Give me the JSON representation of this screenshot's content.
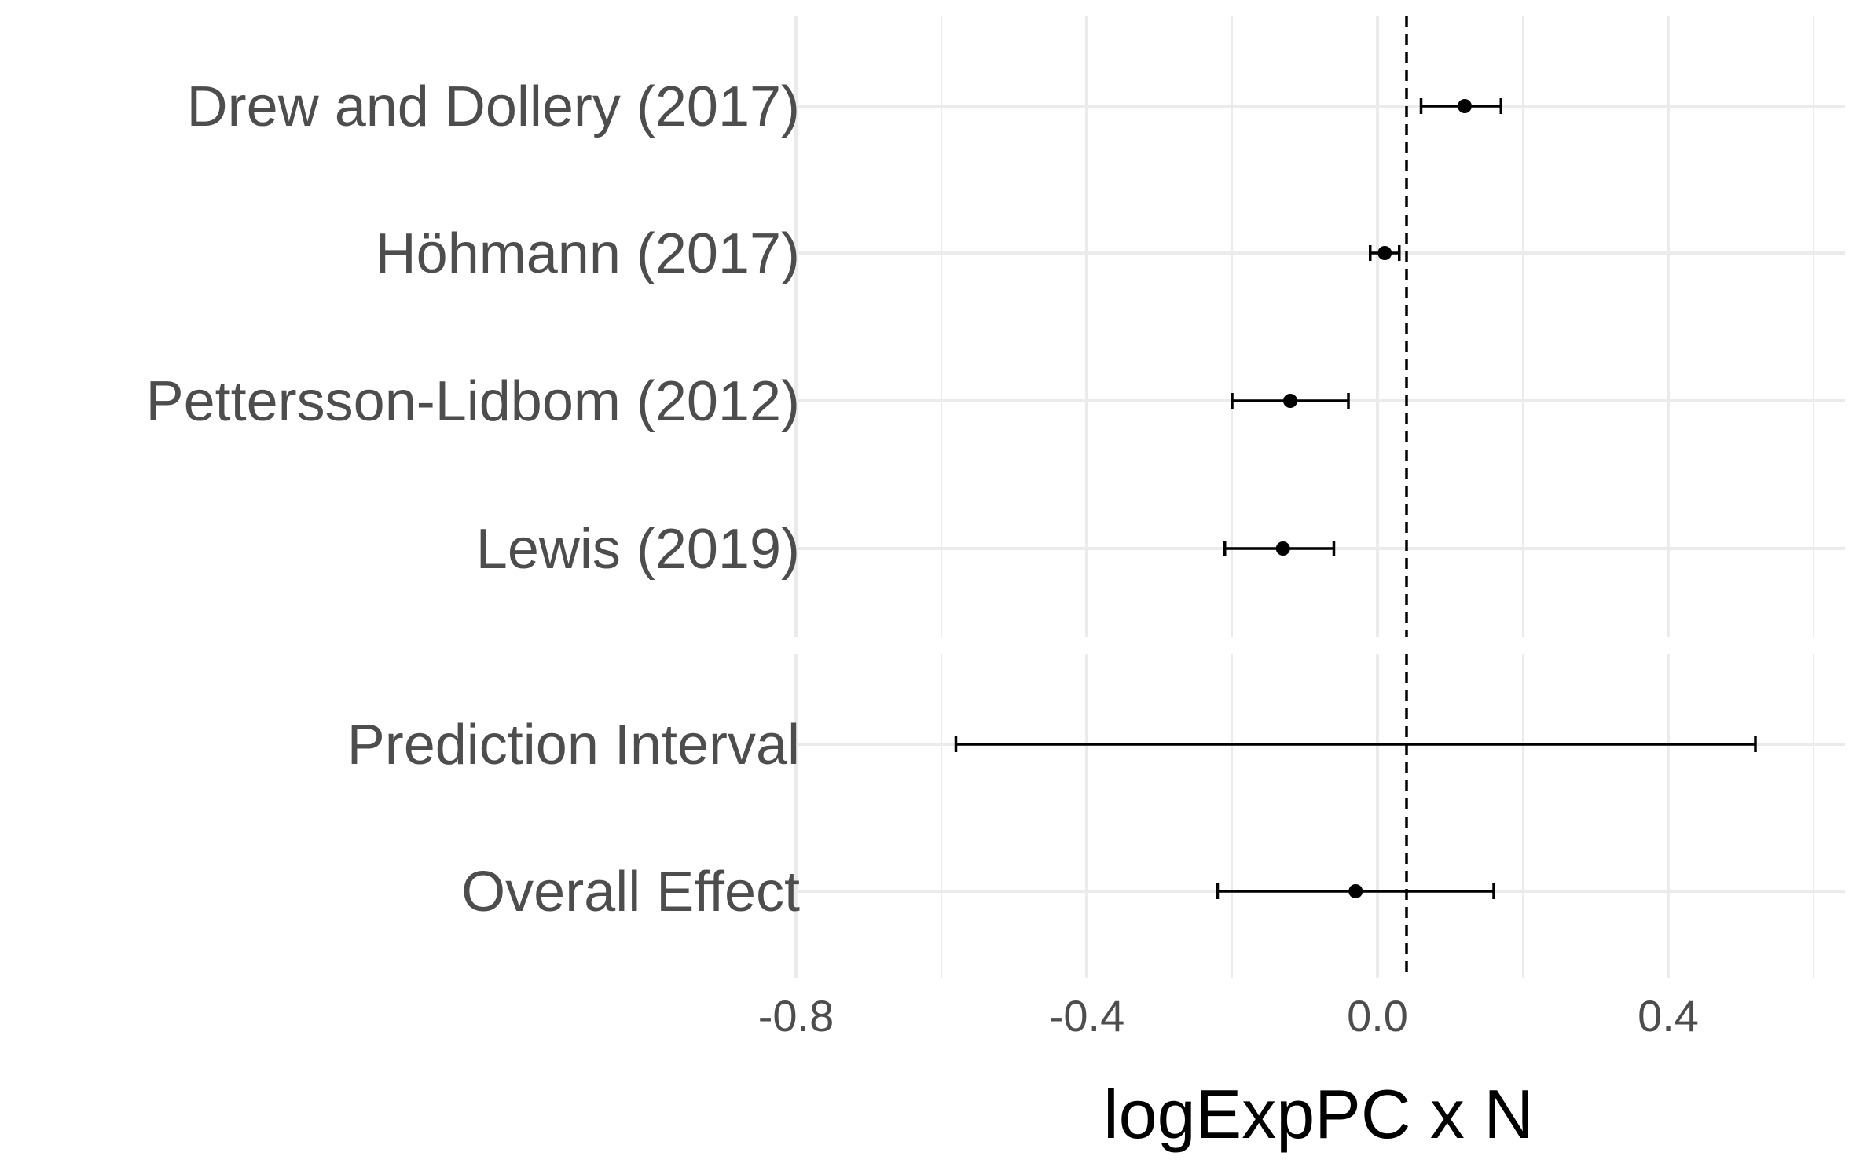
{
  "chart_data": {
    "type": "forest",
    "xlabel": "logExpPC x N",
    "xlim": [
      -0.8,
      0.7
    ],
    "xticks": [
      "-0.8",
      "-0.4",
      "0.0",
      "0.4"
    ],
    "reference_line": 0.04,
    "grid": true,
    "panels": [
      {
        "rows": [
          {
            "label": "Drew and Dollery (2017)",
            "estimate": 0.12,
            "lower": 0.06,
            "upper": 0.17
          },
          {
            "label": "Höhmann (2017)",
            "estimate": 0.01,
            "lower": -0.01,
            "upper": 0.03
          },
          {
            "label": "Pettersson-Lidbom (2012)",
            "estimate": -0.12,
            "lower": -0.2,
            "upper": -0.04
          },
          {
            "label": "Lewis (2019)",
            "estimate": -0.13,
            "lower": -0.21,
            "upper": -0.06
          }
        ]
      },
      {
        "rows": [
          {
            "label": "Prediction Interval",
            "estimate": null,
            "lower": -0.58,
            "upper": 0.52
          },
          {
            "label": "Overall Effect",
            "estimate": -0.03,
            "lower": -0.22,
            "upper": 0.16
          }
        ]
      }
    ]
  }
}
